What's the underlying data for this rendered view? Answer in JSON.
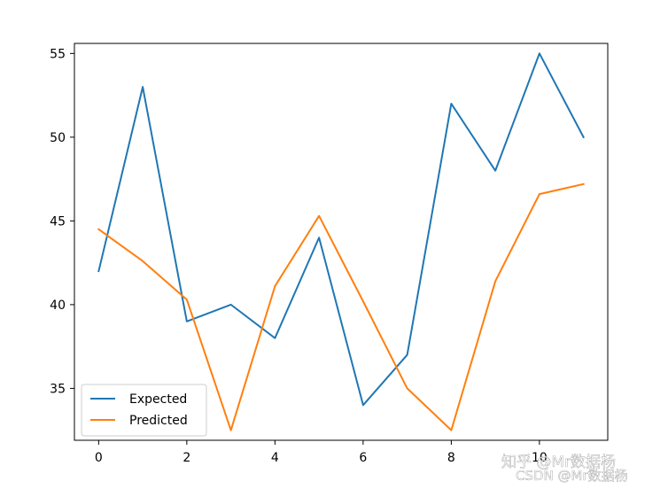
{
  "chart_data": {
    "type": "line",
    "x": [
      0,
      1,
      2,
      3,
      4,
      5,
      6,
      7,
      8,
      9,
      10,
      11
    ],
    "series": [
      {
        "name": "Expected",
        "values": [
          42,
          53,
          39,
          40,
          38,
          44,
          34,
          37,
          52,
          48,
          55,
          50
        ],
        "color": "#1f77b4"
      },
      {
        "name": "Predicted",
        "values": [
          44.5,
          42.6,
          40.3,
          32.5,
          41.1,
          45.3,
          40.2,
          35.0,
          32.5,
          41.4,
          46.6,
          47.2
        ],
        "color": "#ff7f0e"
      }
    ],
    "xlim": [
      -0.55,
      11.55
    ],
    "ylim": [
      31.9,
      55.6
    ],
    "xticks": [
      0,
      2,
      4,
      6,
      8,
      10
    ],
    "yticks": [
      35,
      40,
      45,
      50,
      55
    ],
    "title": "",
    "xlabel": "",
    "ylabel": "",
    "grid": false,
    "legend_position": "lower-left"
  },
  "watermark": {
    "line1": "知乎 @Mr数据杨",
    "line2": "CSDN @Mr数据杨"
  }
}
